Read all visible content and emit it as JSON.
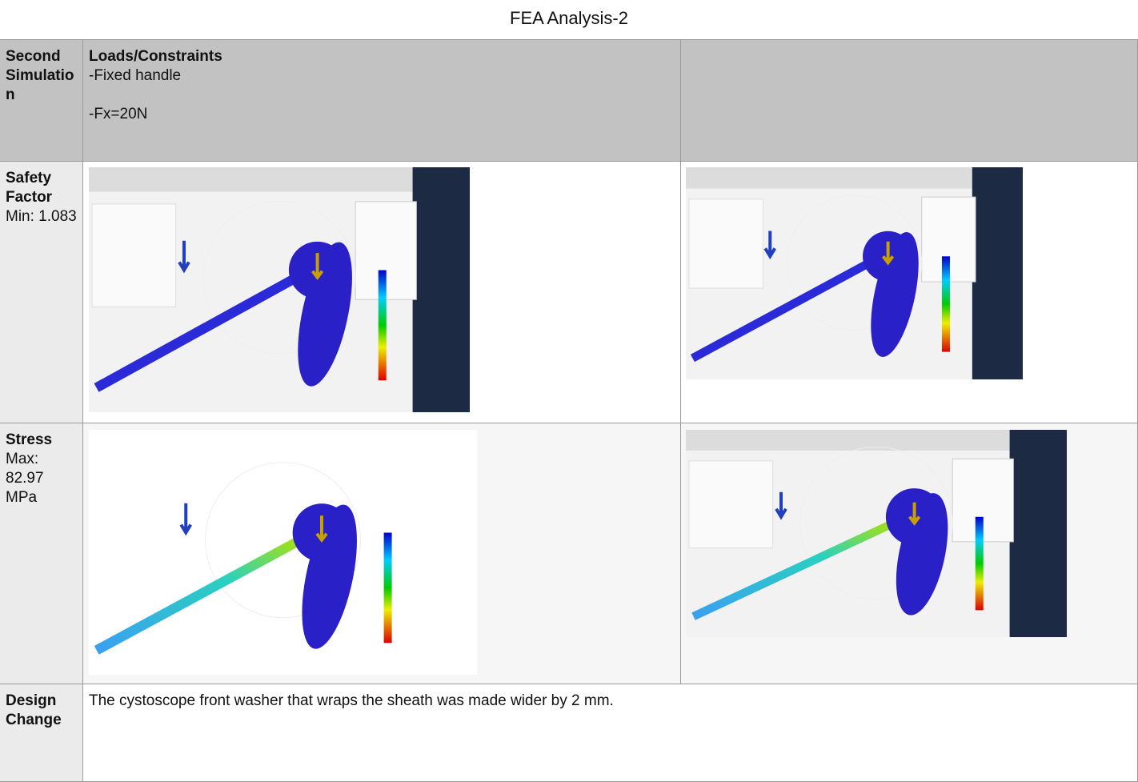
{
  "title": "FEA Analysis-2",
  "table": {
    "header": {
      "label": "Second Simulation",
      "heading": "Loads/Constraints",
      "lines": [
        "-Fixed handle",
        "-Fx=20N"
      ]
    },
    "rows": [
      {
        "label": "Safety Factor",
        "detail": "Min: 1.083"
      },
      {
        "label": "Stress",
        "detail": "Max: 82.97 MPa"
      },
      {
        "label": "Design Change",
        "text": "The cystoscope front washer that wraps the sheath was made wider by 2 mm."
      }
    ]
  }
}
